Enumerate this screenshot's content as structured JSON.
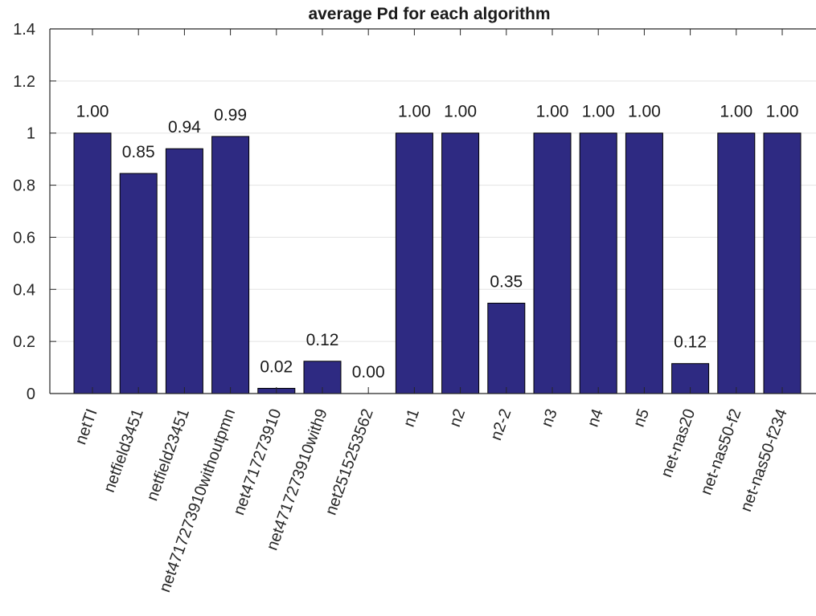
{
  "chart_data": {
    "type": "bar",
    "title": "average Pd for each algorithm",
    "xlabel": "",
    "ylabel": "",
    "ylim": [
      0,
      1.4
    ],
    "yticks": [
      "0",
      "0.2",
      "0.4",
      "0.6",
      "0.8",
      "1",
      "1.2",
      "1.4"
    ],
    "grid": true,
    "categories": [
      "netTI",
      "netfield3451",
      "netfield23451",
      "net4717273910withoutpmn",
      "net4717273910",
      "net4717273910with9",
      "net2515253562",
      "n1",
      "n2",
      "n2-2",
      "n3",
      "n4",
      "n5",
      "net-nas20",
      "net-nas50-f2",
      "net-nas50-f234"
    ],
    "values": [
      1.0,
      0.845,
      0.94,
      0.987,
      0.02,
      0.124,
      0.0,
      1.0,
      1.0,
      0.347,
      1.0,
      1.0,
      1.0,
      0.115,
      1.0,
      1.0
    ],
    "value_labels": [
      "1.00",
      "0.85",
      "0.94",
      "0.99",
      "0.02",
      "0.12",
      "0.00",
      "1.00",
      "1.00",
      "0.35",
      "1.00",
      "1.00",
      "1.00",
      "0.12",
      "1.00",
      "1.00"
    ],
    "colors": {
      "bar": "#2e2a82",
      "edge": "#000000",
      "grid": "#e3e3e3",
      "axis": "#262626"
    }
  }
}
